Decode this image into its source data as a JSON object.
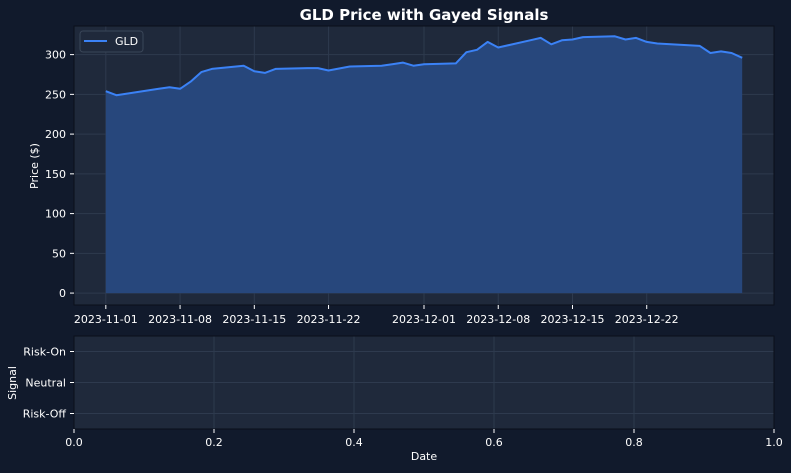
{
  "colors": {
    "figure_bg": "#111a2c",
    "axes_bg": "#1f293b",
    "grid": "#2e3a4e",
    "text": "#ffffff",
    "line": "#3b82f6",
    "fill": "#27477c",
    "spine": "#0a0f1a"
  },
  "chart_data": [
    {
      "type": "area",
      "title": "GLD Price with Gayed Signals",
      "xlabel": "",
      "ylabel": "Price ($)",
      "xlim": [
        "2023-10-29",
        "2024-01-03"
      ],
      "ylim": [
        -15,
        336
      ],
      "yticks": [
        0,
        50,
        100,
        150,
        200,
        250,
        300
      ],
      "xticks": [
        "2023-11-01",
        "2023-11-08",
        "2023-11-15",
        "2023-11-22",
        "2023-12-01",
        "2023-12-08",
        "2023-12-15",
        "2023-12-22"
      ],
      "grid": true,
      "legend": {
        "position": "top-left",
        "entries": [
          "GLD"
        ]
      },
      "series": [
        {
          "name": "GLD",
          "points": [
            [
              "2023-11-01",
              254
            ],
            [
              "2023-11-02",
              249
            ],
            [
              "2023-11-03",
              251
            ],
            [
              "2023-11-04",
              253
            ],
            [
              "2023-11-05",
              255
            ],
            [
              "2023-11-06",
              257
            ],
            [
              "2023-11-07",
              259
            ],
            [
              "2023-11-08",
              257
            ],
            [
              "2023-11-09",
              266
            ],
            [
              "2023-11-10",
              278
            ],
            [
              "2023-11-11",
              282
            ],
            [
              "2023-11-14",
              286
            ],
            [
              "2023-11-15",
              279
            ],
            [
              "2023-11-16",
              277
            ],
            [
              "2023-11-17",
              282
            ],
            [
              "2023-11-20",
              283
            ],
            [
              "2023-11-21",
              283
            ],
            [
              "2023-11-22",
              280
            ],
            [
              "2023-11-24",
              285
            ],
            [
              "2023-11-27",
              286
            ],
            [
              "2023-11-28",
              288
            ],
            [
              "2023-11-29",
              290
            ],
            [
              "2023-11-30",
              286
            ],
            [
              "2023-12-01",
              288
            ],
            [
              "2023-12-04",
              289
            ],
            [
              "2023-12-05",
              303
            ],
            [
              "2023-12-06",
              306
            ],
            [
              "2023-12-07",
              316
            ],
            [
              "2023-12-08",
              309
            ],
            [
              "2023-12-11",
              318
            ],
            [
              "2023-12-12",
              321
            ],
            [
              "2023-12-13",
              313
            ],
            [
              "2023-12-14",
              318
            ],
            [
              "2023-12-15",
              319
            ],
            [
              "2023-12-16",
              322
            ],
            [
              "2023-12-19",
              323
            ],
            [
              "2023-12-20",
              319
            ],
            [
              "2023-12-21",
              321
            ],
            [
              "2023-12-22",
              316
            ],
            [
              "2023-12-23",
              314
            ],
            [
              "2023-12-27",
              311
            ],
            [
              "2023-12-28",
              302
            ],
            [
              "2023-12-29",
              304
            ],
            [
              "2023-12-30",
              302
            ],
            [
              "2023-12-31",
              296
            ]
          ]
        }
      ]
    },
    {
      "type": "line",
      "title": "",
      "xlabel": "Date",
      "ylabel": "Signal",
      "xlim": [
        0,
        1
      ],
      "xticks": [
        "0.0",
        "0.2",
        "0.4",
        "0.6",
        "0.8",
        "1.0"
      ],
      "yticks": [
        "Risk-On",
        "Neutral",
        "Risk-Off"
      ],
      "ytick_values": [
        1,
        0,
        -1
      ],
      "ylim": [
        -1.5,
        1.5
      ],
      "grid": true,
      "series": []
    }
  ]
}
